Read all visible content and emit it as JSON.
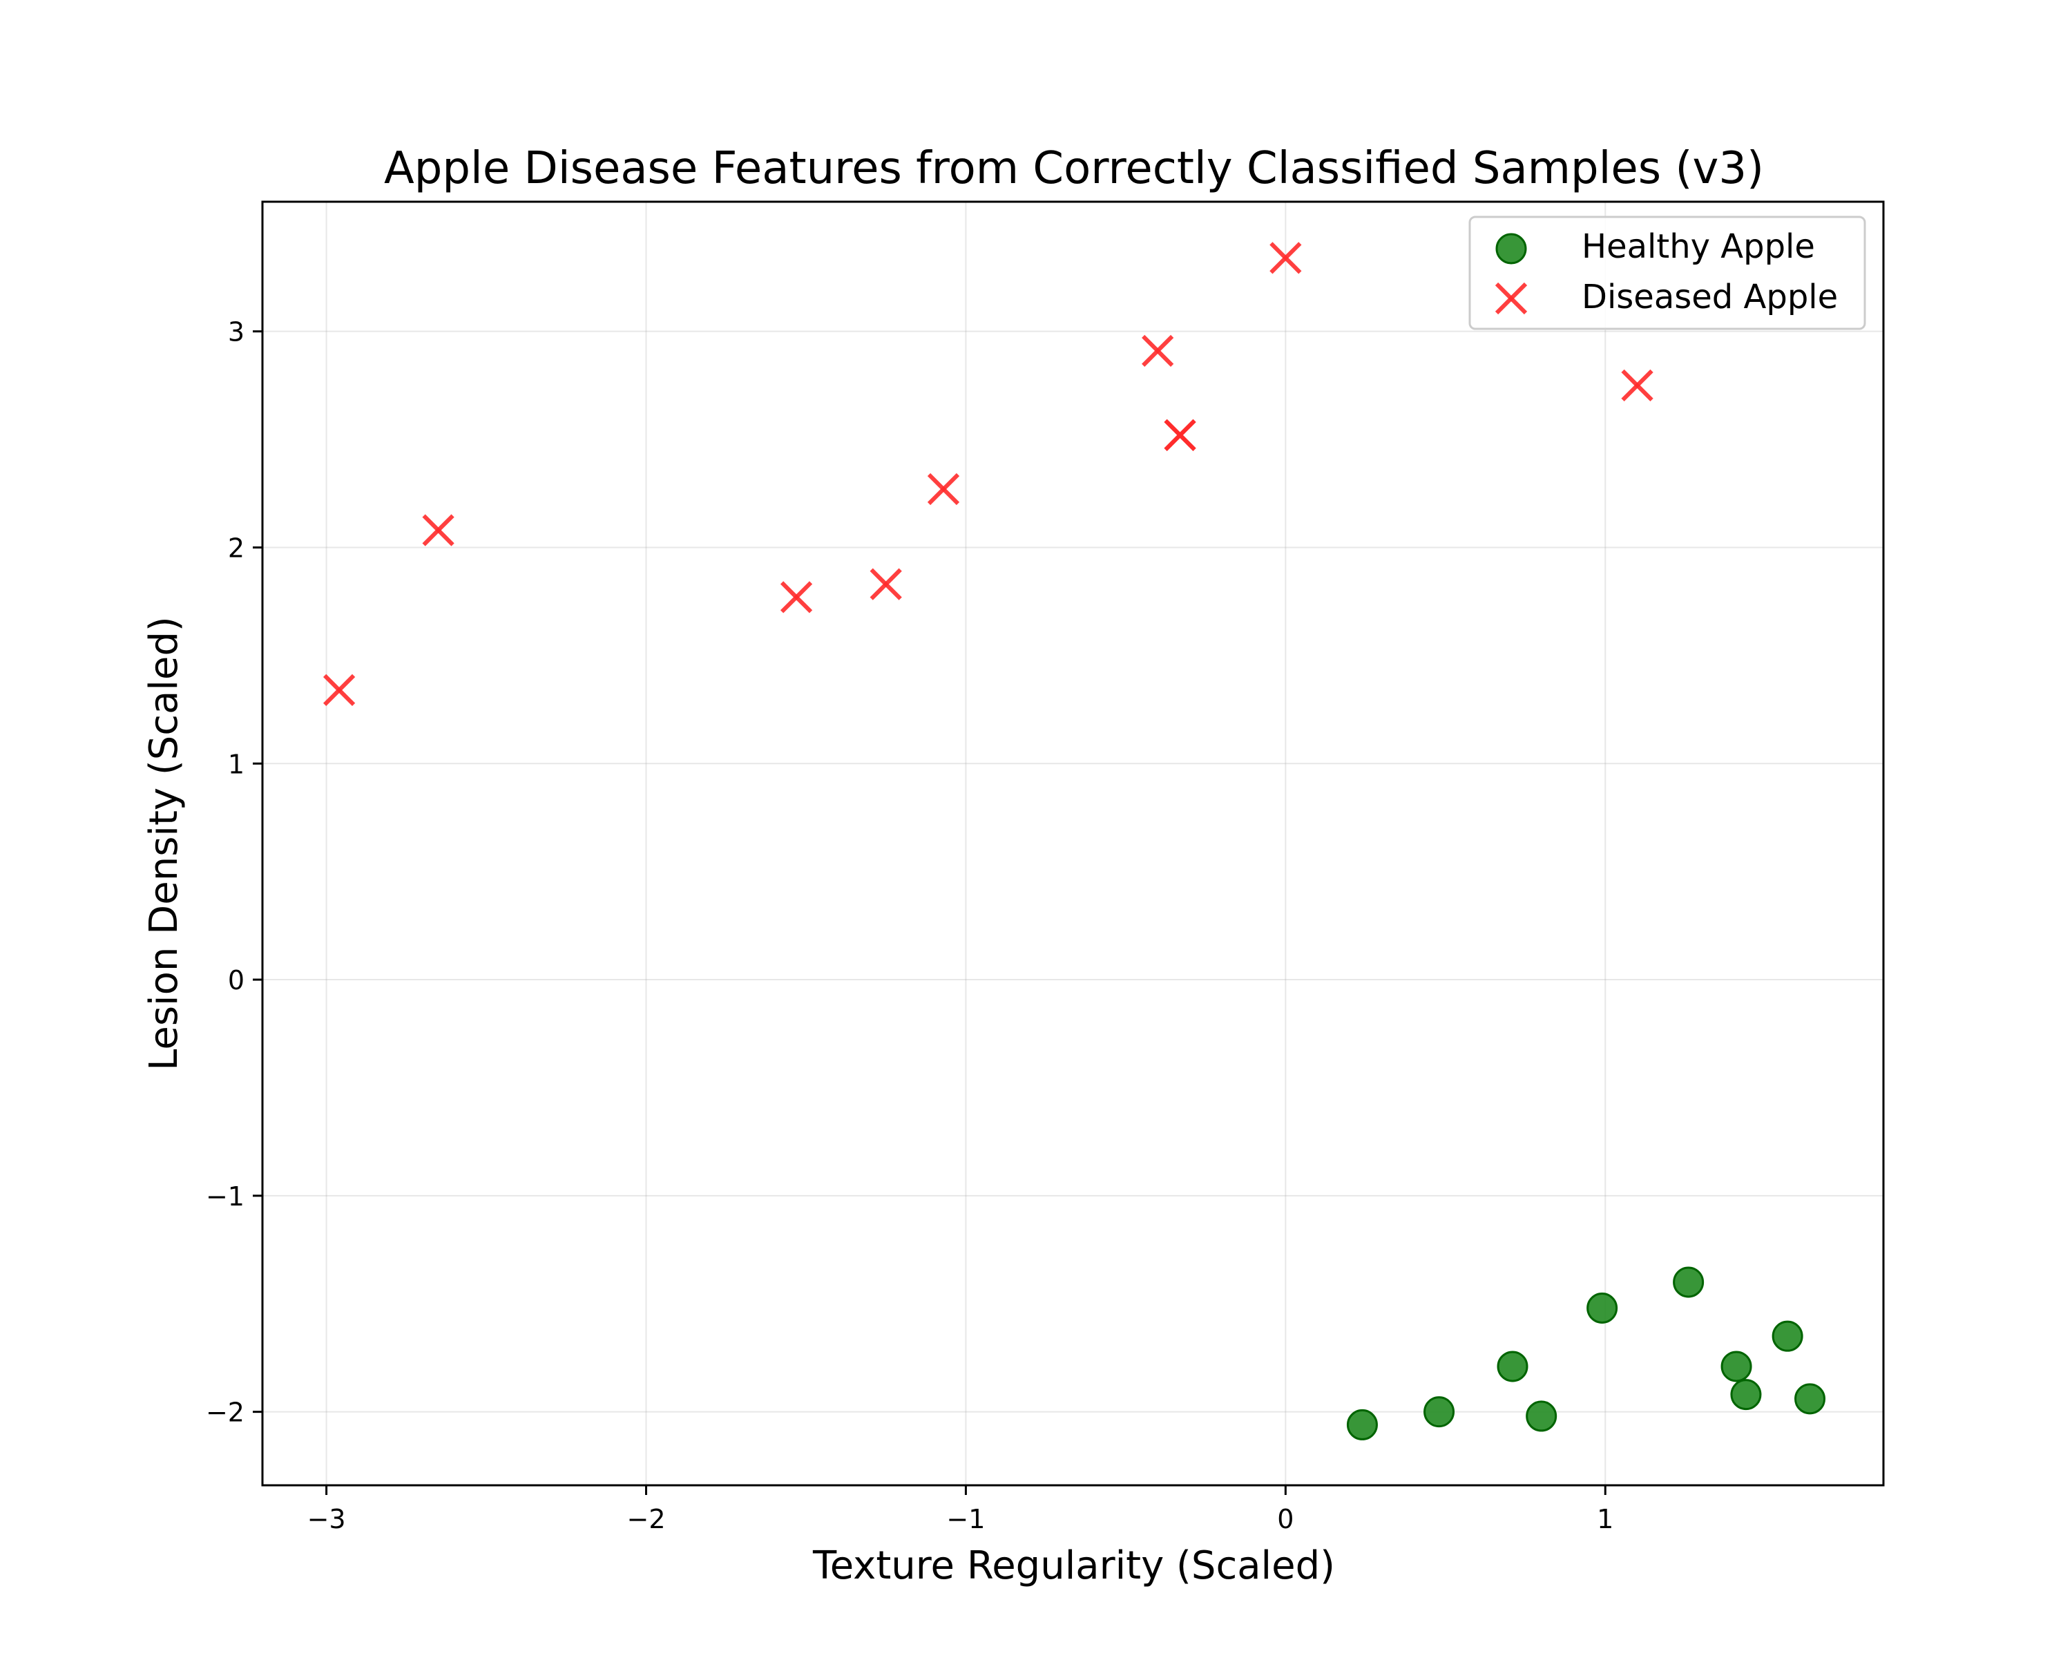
{
  "chart_data": {
    "type": "scatter",
    "title": "Apple Disease Features from Correctly Classified Samples (v3)",
    "xlabel": "Texture Regularity (Scaled)",
    "ylabel": "Lesion Density (Scaled)",
    "xlim": [
      -3.2,
      1.87
    ],
    "ylim": [
      -2.34,
      3.6
    ],
    "xticks": [
      -3,
      -2,
      -1,
      0,
      1
    ],
    "yticks": [
      -2,
      -1,
      0,
      1,
      2,
      3
    ],
    "grid": true,
    "legend_position": "top-right",
    "series": [
      {
        "name": "Healthy Apple",
        "marker": "circle",
        "color": "#228B22",
        "edge_color": "#006400",
        "points": [
          {
            "x": 0.24,
            "y": -2.06
          },
          {
            "x": 0.48,
            "y": -2.0
          },
          {
            "x": 0.71,
            "y": -1.79
          },
          {
            "x": 0.8,
            "y": -2.02
          },
          {
            "x": 0.99,
            "y": -1.52
          },
          {
            "x": 1.26,
            "y": -1.4
          },
          {
            "x": 1.41,
            "y": -1.79
          },
          {
            "x": 1.44,
            "y": -1.92
          },
          {
            "x": 1.57,
            "y": -1.65
          },
          {
            "x": 1.64,
            "y": -1.94
          }
        ]
      },
      {
        "name": "Diseased Apple",
        "marker": "x",
        "color": "#FF2A2A",
        "points": [
          {
            "x": -2.96,
            "y": 1.34
          },
          {
            "x": -2.65,
            "y": 2.08
          },
          {
            "x": -1.53,
            "y": 1.77
          },
          {
            "x": -1.25,
            "y": 1.83
          },
          {
            "x": -1.07,
            "y": 2.27
          },
          {
            "x": -0.4,
            "y": 2.91
          },
          {
            "x": -0.33,
            "y": 2.52
          },
          {
            "x": -0.33,
            "y": 2.52
          },
          {
            "x": 0.0,
            "y": 3.34
          },
          {
            "x": 1.1,
            "y": 2.75
          }
        ]
      }
    ]
  }
}
